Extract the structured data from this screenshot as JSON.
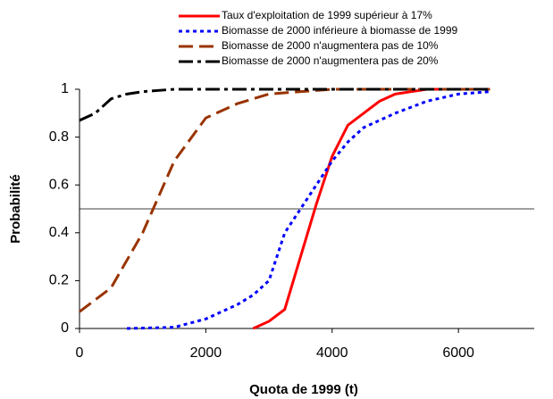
{
  "chart_data": {
    "type": "line",
    "xlabel": "Quota de 1999 (t)",
    "ylabel": "Probabilité",
    "xlim": [
      0,
      7200
    ],
    "ylim": [
      0,
      1
    ],
    "xticks": [
      0,
      2000,
      4000,
      6000
    ],
    "yticks": [
      0,
      0.2,
      0.4,
      0.6,
      0.8,
      1
    ],
    "reference_line": 0.5,
    "series": [
      {
        "name": "Taux d'exploitation de 1999 supérieur à 17%",
        "color": "#ff0000",
        "dash": "none",
        "x": [
          2750,
          3000,
          3250,
          3500,
          3750,
          4000,
          4250,
          4500,
          4750,
          5000,
          5250,
          5500,
          6000,
          6500
        ],
        "values": [
          0,
          0.03,
          0.08,
          0.3,
          0.52,
          0.72,
          0.85,
          0.9,
          0.95,
          0.98,
          0.99,
          1,
          1,
          1
        ]
      },
      {
        "name": "Biomasse de 2000 inférieure à biomasse de 1999",
        "color": "#0000ff",
        "dash": "4 4",
        "x": [
          750,
          1500,
          2000,
          2500,
          2750,
          3000,
          3250,
          3500,
          3750,
          4000,
          4250,
          4500,
          5000,
          5500,
          6000,
          6500
        ],
        "values": [
          0,
          0.005,
          0.04,
          0.1,
          0.14,
          0.2,
          0.4,
          0.5,
          0.6,
          0.7,
          0.78,
          0.84,
          0.9,
          0.95,
          0.98,
          0.99
        ]
      },
      {
        "name": "Biomasse de 2000 n'augmentera pas de 10%",
        "color": "#993300",
        "dash": "16 7",
        "x": [
          0,
          500,
          1000,
          1250,
          1500,
          2000,
          2500,
          3000,
          3500,
          4000,
          6500
        ],
        "values": [
          0.07,
          0.17,
          0.4,
          0.55,
          0.7,
          0.88,
          0.94,
          0.98,
          0.99,
          1,
          1
        ]
      },
      {
        "name": "Biomasse de 2000 n'augmentera pas de 20%",
        "color": "#000000",
        "dash": "16 5 4 5",
        "x": [
          0,
          250,
          500,
          750,
          1000,
          1500,
          6500
        ],
        "values": [
          0.87,
          0.9,
          0.96,
          0.98,
          0.99,
          1,
          1
        ]
      }
    ]
  }
}
